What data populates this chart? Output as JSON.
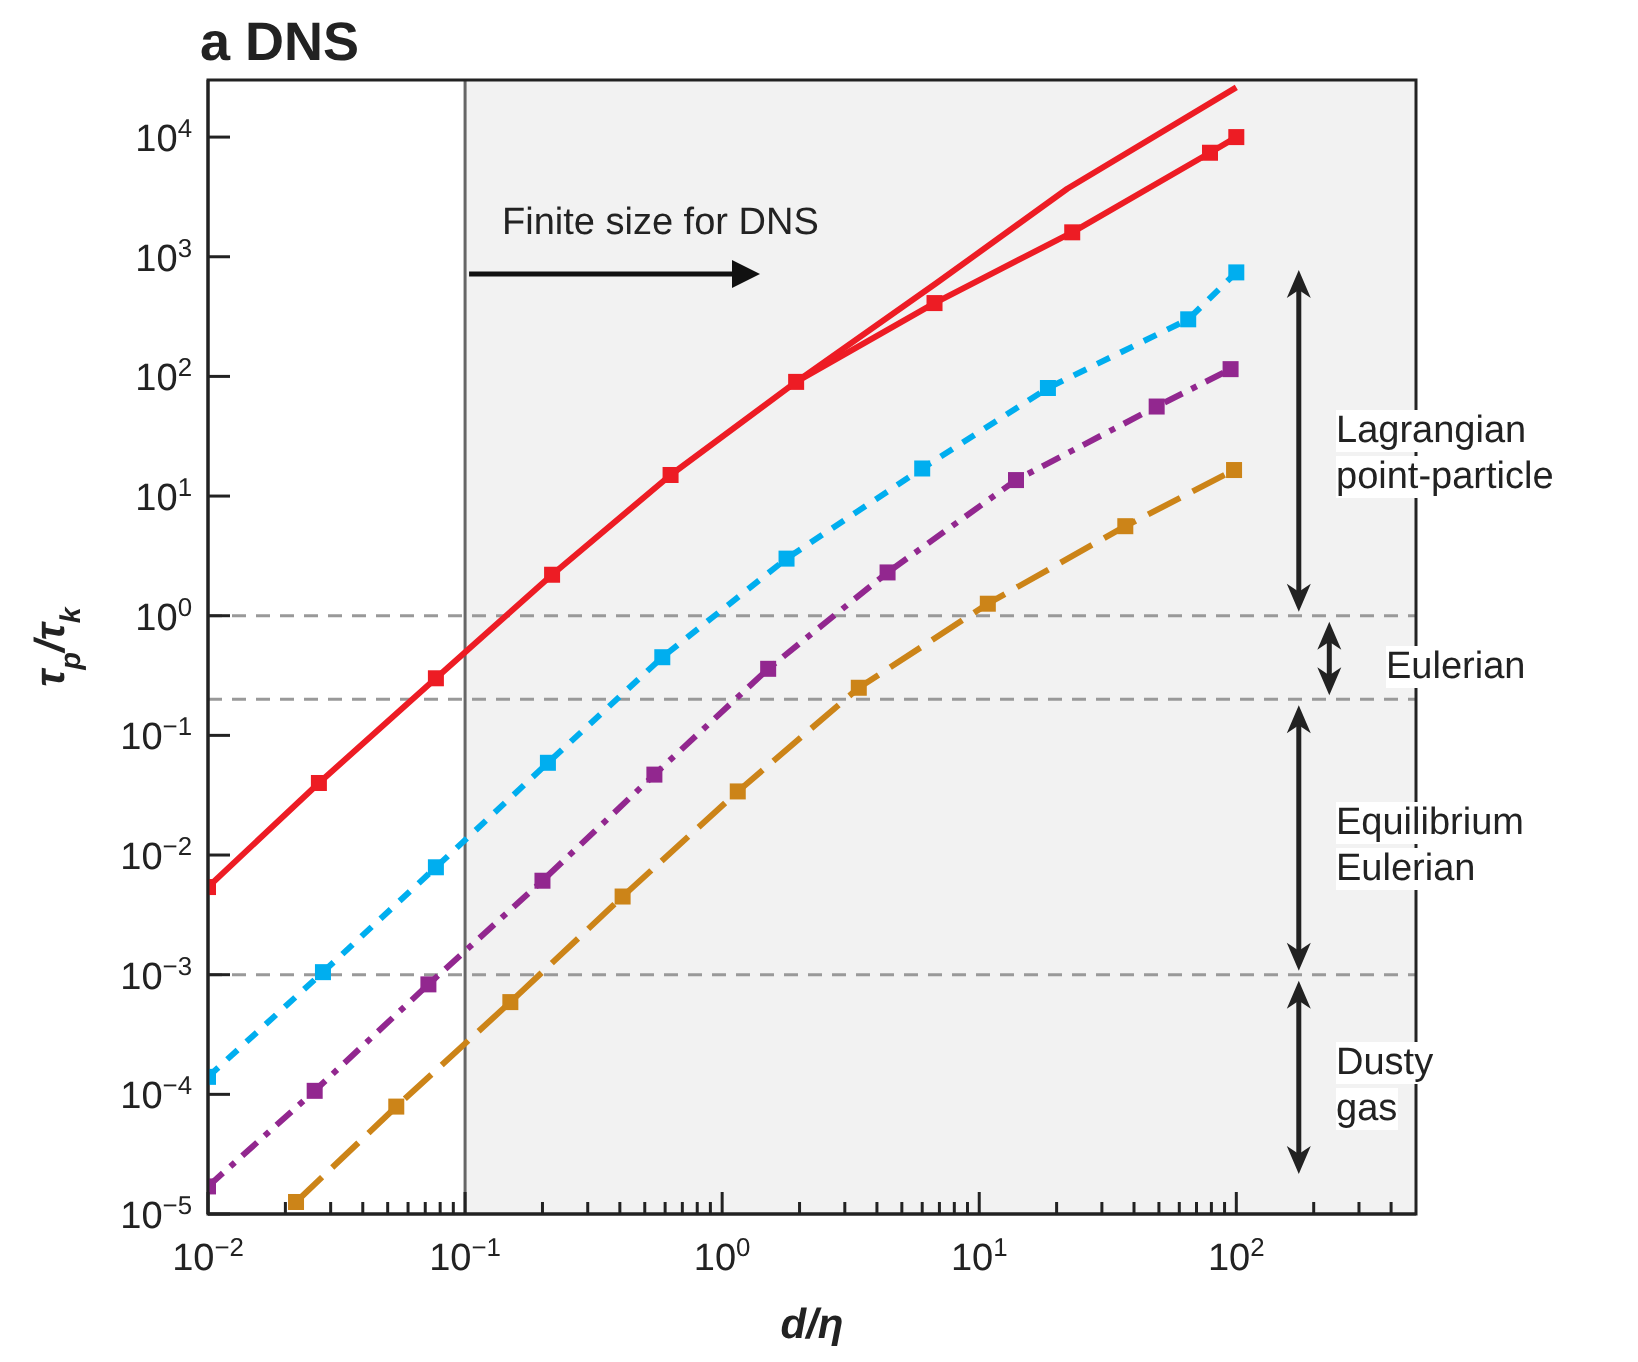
{
  "chart_data": {
    "type": "line",
    "title": "a DNS",
    "xlabel": "d/η",
    "ylabel": "τ$_{p}$/τ$_{k}$",
    "log": "xy",
    "xlim": [
      0.01,
      500
    ],
    "ylim": [
      1e-05,
      30000
    ],
    "xticks": [
      {
        "value": 0.01,
        "label": "10$^{−2}$"
      },
      {
        "value": 0.02,
        "label": null
      },
      {
        "value": 0.03,
        "label": null
      },
      {
        "value": 0.04,
        "label": null
      },
      {
        "value": 0.05,
        "label": null
      },
      {
        "value": 0.06,
        "label": null
      },
      {
        "value": 0.07,
        "label": null
      },
      {
        "value": 0.08,
        "label": null
      },
      {
        "value": 0.09,
        "label": null
      },
      {
        "value": 0.1,
        "label": "10$^{−1}$"
      },
      {
        "value": 0.2,
        "label": null
      },
      {
        "value": 0.3,
        "label": null
      },
      {
        "value": 0.4,
        "label": null
      },
      {
        "value": 0.5,
        "label": null
      },
      {
        "value": 0.6,
        "label": null
      },
      {
        "value": 0.7,
        "label": null
      },
      {
        "value": 0.8,
        "label": null
      },
      {
        "value": 0.9,
        "label": null
      },
      {
        "value": 1,
        "label": "10$^{0}$"
      },
      {
        "value": 2,
        "label": null
      },
      {
        "value": 3,
        "label": null
      },
      {
        "value": 4,
        "label": null
      },
      {
        "value": 5,
        "label": null
      },
      {
        "value": 6,
        "label": null
      },
      {
        "value": 7,
        "label": null
      },
      {
        "value": 8,
        "label": null
      },
      {
        "value": 9,
        "label": null
      },
      {
        "value": 10,
        "label": "10$^{1}$"
      },
      {
        "value": 20,
        "label": null
      },
      {
        "value": 30,
        "label": null
      },
      {
        "value": 40,
        "label": null
      },
      {
        "value": 50,
        "label": null
      },
      {
        "value": 60,
        "label": null
      },
      {
        "value": 70,
        "label": null
      },
      {
        "value": 80,
        "label": null
      },
      {
        "value": 90,
        "label": null
      },
      {
        "value": 100,
        "label": "10$^{2}$"
      },
      {
        "value": 200,
        "label": null
      },
      {
        "value": 300,
        "label": null
      },
      {
        "value": 400,
        "label": null
      }
    ],
    "yticks": [
      {
        "value": 1e-05,
        "label": "10$^{−5}$"
      },
      {
        "value": 0.0001,
        "label": "10$^{−4}$"
      },
      {
        "value": 0.001,
        "label": "10$^{−3}$"
      },
      {
        "value": 0.01,
        "label": "10$^{−2}$"
      },
      {
        "value": 0.1,
        "label": "10$^{−1}$"
      },
      {
        "value": 1,
        "label": "10$^{0}$"
      },
      {
        "value": 10,
        "label": "10$^{1}$"
      },
      {
        "value": 100,
        "label": "10$^{2}$"
      },
      {
        "value": 1000,
        "label": "10$^{3}$"
      },
      {
        "value": 10000,
        "label": "10$^{4}$"
      }
    ],
    "series": [
      {
        "color": "#ed1c24",
        "line_style": "solid",
        "marker": "square",
        "x": [
          0.01,
          0.027,
          0.077,
          0.218,
          0.63,
          1.94,
          6.7,
          23,
          79,
          100
        ],
        "values": [
          0.0054,
          0.04,
          0.3,
          2.2,
          15,
          90,
          410,
          1600,
          7400,
          10000
        ]
      },
      {
        "color": "#ed1c24",
        "line_style": "solid",
        "marker": "none",
        "x": [
          1.94,
          6.8,
          22,
          100
        ],
        "values": [
          90,
          600,
          3700,
          26000
        ]
      },
      {
        "color": "#00aeef",
        "line_style": "dashed",
        "marker": "square",
        "x": [
          0.01,
          0.028,
          0.077,
          0.21,
          0.585,
          1.78,
          6,
          18.5,
          65,
          100
        ],
        "values": [
          0.00014,
          0.00105,
          0.0079,
          0.059,
          0.45,
          3,
          17,
          80,
          300,
          740
        ]
      },
      {
        "color": "#92278f",
        "line_style": "dashed",
        "marker": "square",
        "x": [
          0.01,
          0.026,
          0.072,
          0.2,
          0.545,
          1.51,
          4.4,
          13.9,
          49,
          95
        ],
        "values": [
          1.7e-05,
          0.000107,
          0.00083,
          0.0061,
          0.047,
          0.36,
          2.3,
          13.6,
          56,
          115
        ]
      },
      {
        "color": "#cc8418",
        "line_style": "dashed",
        "marker": "square",
        "x": [
          0.022,
          0.054,
          0.15,
          0.41,
          1.15,
          3.4,
          10.8,
          37,
          98
        ],
        "values": [
          1.26e-05,
          7.9e-05,
          0.00059,
          0.0045,
          0.034,
          0.25,
          1.26,
          5.6,
          16.5
        ]
      }
    ],
    "ref_lines": [
      {
        "axis": "y",
        "value": 1,
        "color": "#999999",
        "line_style": "dashed"
      },
      {
        "axis": "y",
        "value": 0.2,
        "color": "#999999",
        "line_style": "dashed"
      },
      {
        "axis": "y",
        "value": 0.001,
        "color": "#999999",
        "line_style": "dashed"
      },
      {
        "axis": "x",
        "value": 0.1,
        "color": "#666666",
        "line_style": "solid"
      }
    ],
    "bands": [
      {
        "axis": "x",
        "from": 0.1,
        "to": 500,
        "color": "#f2f2f2"
      }
    ],
    "annotations": [
      "Finite size for DNS",
      "Lagrangian point-particle",
      "Eulerian",
      "Equilibrium Eulerian",
      "Dusty gas"
    ]
  }
}
